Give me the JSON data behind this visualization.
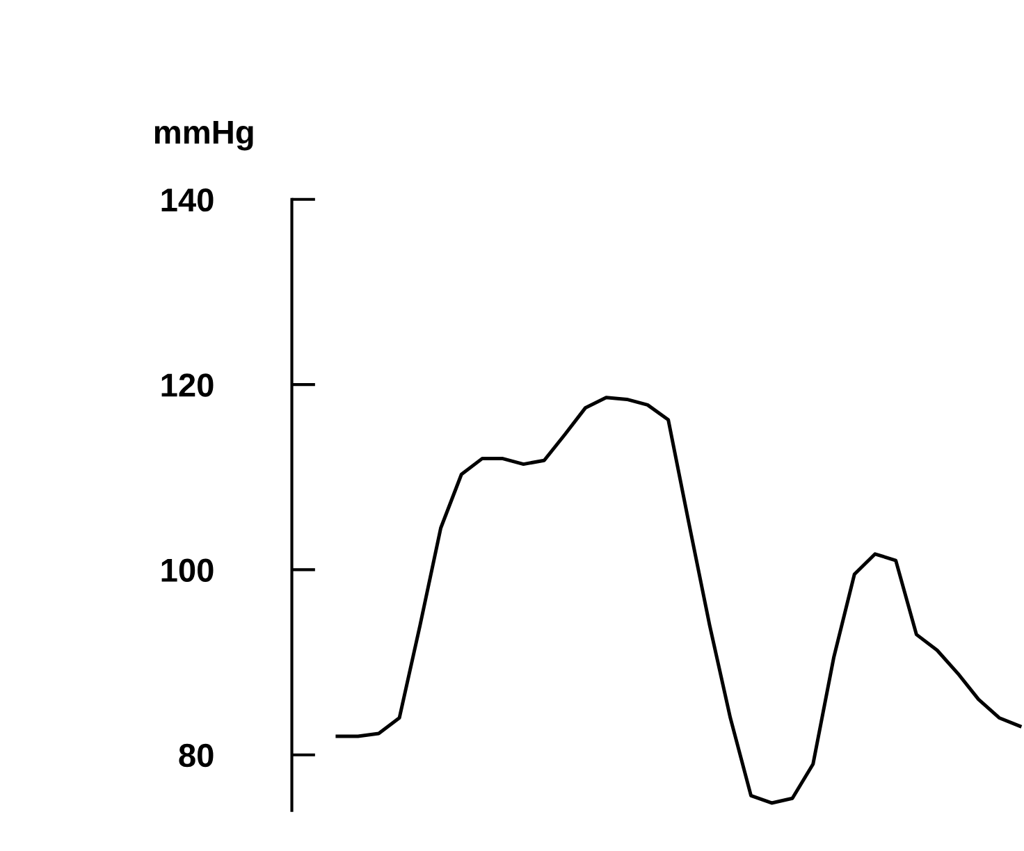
{
  "chart_data": {
    "type": "line",
    "ylabel": "mmHg",
    "categories": [
      null,
      null,
      null,
      null,
      null,
      null,
      null,
      null,
      null,
      null,
      null,
      null,
      null,
      null,
      null,
      null,
      null,
      null,
      null,
      null,
      null,
      null,
      null,
      null,
      null,
      null,
      null,
      null,
      null,
      null,
      null,
      null,
      null,
      null
    ],
    "series": [
      {
        "color": "#000000",
        "values": [
          82,
          82,
          82.3,
          84,
          94,
          104.5,
          110.3,
          112,
          112,
          111.4,
          111.8,
          114.6,
          117.5,
          118.6,
          118.4,
          117.8,
          116.2,
          105,
          94,
          84,
          75.6,
          74.8,
          75.3,
          79,
          90.5,
          99.5,
          101.7,
          101,
          93,
          91.3,
          88.8,
          86,
          84,
          83.1
        ]
      }
    ],
    "ylim": [
      74,
      140
    ],
    "yticks": [
      80,
      100,
      120,
      140
    ],
    "grid": false,
    "tick_labels": "y",
    "legend": false,
    "marker": "none",
    "line_style": "solid"
  }
}
